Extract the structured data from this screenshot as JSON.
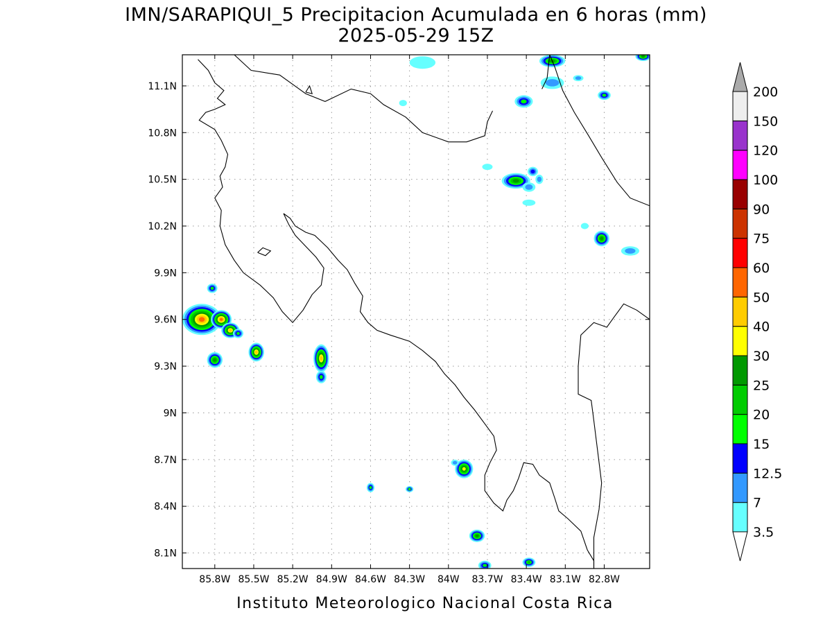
{
  "header": {
    "title_line1": "IMN/SARAPIQUI_5 Precipitacion Acumulada en 6 horas (mm)",
    "title_line2": "2025-05-29 15Z"
  },
  "footer": {
    "credit": "Instituto Meteorologico Nacional Costa Rica"
  },
  "map": {
    "lon_range": [
      -86.05,
      -82.45
    ],
    "lat_range": [
      8.0,
      11.3
    ],
    "lon_ticks": [
      {
        "value": -85.8,
        "label": "85.8W"
      },
      {
        "value": -85.5,
        "label": "85.5W"
      },
      {
        "value": -85.2,
        "label": "85.2W"
      },
      {
        "value": -84.9,
        "label": "84.9W"
      },
      {
        "value": -84.6,
        "label": "84.6W"
      },
      {
        "value": -84.3,
        "label": "84.3W"
      },
      {
        "value": -84.0,
        "label": "84W"
      },
      {
        "value": -83.7,
        "label": "83.7W"
      },
      {
        "value": -83.4,
        "label": "83.4W"
      },
      {
        "value": -83.1,
        "label": "83.1W"
      },
      {
        "value": -82.8,
        "label": "82.8W"
      }
    ],
    "lat_ticks": [
      {
        "value": 8.1,
        "label": "8.1N"
      },
      {
        "value": 8.4,
        "label": "8.4N"
      },
      {
        "value": 8.7,
        "label": "8.7N"
      },
      {
        "value": 9.0,
        "label": "9N"
      },
      {
        "value": 9.3,
        "label": "9.3N"
      },
      {
        "value": 9.6,
        "label": "9.6N"
      },
      {
        "value": 9.9,
        "label": "9.9N"
      },
      {
        "value": 10.2,
        "label": "10.2N"
      },
      {
        "value": 10.5,
        "label": "10.5N"
      },
      {
        "value": 10.8,
        "label": "10.8N"
      },
      {
        "value": 11.1,
        "label": "11.1N"
      }
    ],
    "grid": true,
    "coastline": [
      [
        [
          -85.93,
          11.27
        ],
        [
          -85.85,
          11.2
        ],
        [
          -85.8,
          11.12
        ],
        [
          -85.73,
          11.07
        ],
        [
          -85.78,
          11.02
        ],
        [
          -85.72,
          10.98
        ],
        [
          -85.8,
          10.95
        ],
        [
          -85.87,
          10.93
        ],
        [
          -85.92,
          10.88
        ],
        [
          -85.8,
          10.82
        ],
        [
          -85.75,
          10.75
        ],
        [
          -85.7,
          10.66
        ],
        [
          -85.72,
          10.58
        ],
        [
          -85.76,
          10.52
        ],
        [
          -85.74,
          10.45
        ],
        [
          -85.8,
          10.38
        ],
        [
          -85.75,
          10.3
        ],
        [
          -85.76,
          10.2
        ],
        [
          -85.72,
          10.08
        ],
        [
          -85.65,
          9.98
        ],
        [
          -85.58,
          9.9
        ],
        [
          -85.45,
          9.82
        ],
        [
          -85.35,
          9.74
        ],
        [
          -85.28,
          9.65
        ],
        [
          -85.2,
          9.58
        ],
        [
          -85.12,
          9.66
        ],
        [
          -85.05,
          9.76
        ],
        [
          -84.98,
          9.82
        ],
        [
          -84.96,
          9.93
        ],
        [
          -85.02,
          10.0
        ],
        [
          -85.1,
          10.07
        ],
        [
          -85.18,
          10.14
        ],
        [
          -85.23,
          10.21
        ],
        [
          -85.27,
          10.28
        ],
        [
          -85.22,
          10.25
        ],
        [
          -85.18,
          10.2
        ],
        [
          -85.1,
          10.16
        ],
        [
          -85.03,
          10.14
        ],
        [
          -84.93,
          10.06
        ],
        [
          -84.85,
          9.98
        ],
        [
          -84.78,
          9.92
        ],
        [
          -84.72,
          9.83
        ],
        [
          -84.66,
          9.75
        ],
        [
          -84.68,
          9.65
        ],
        [
          -84.62,
          9.58
        ],
        [
          -84.55,
          9.53
        ],
        [
          -84.45,
          9.5
        ],
        [
          -84.3,
          9.46
        ],
        [
          -84.2,
          9.4
        ],
        [
          -84.1,
          9.33
        ],
        [
          -84.03,
          9.25
        ],
        [
          -83.95,
          9.18
        ],
        [
          -83.88,
          9.1
        ],
        [
          -83.8,
          9.02
        ],
        [
          -83.72,
          8.93
        ],
        [
          -83.65,
          8.85
        ],
        [
          -83.63,
          8.76
        ],
        [
          -83.68,
          8.68
        ],
        [
          -83.72,
          8.6
        ],
        [
          -83.72,
          8.5
        ],
        [
          -83.65,
          8.42
        ],
        [
          -83.58,
          8.37
        ],
        [
          -83.55,
          8.44
        ],
        [
          -83.5,
          8.5
        ],
        [
          -83.46,
          8.58
        ],
        [
          -83.42,
          8.68
        ],
        [
          -83.35,
          8.67
        ],
        [
          -83.3,
          8.6
        ],
        [
          -83.22,
          8.55
        ],
        [
          -83.18,
          8.45
        ],
        [
          -83.15,
          8.37
        ],
        [
          -83.08,
          8.32
        ],
        [
          -82.98,
          8.24
        ],
        [
          -82.93,
          8.12
        ],
        [
          -82.88,
          8.05
        ],
        [
          -82.88,
          8.0
        ]
      ],
      [
        [
          -85.47,
          10.03
        ],
        [
          -85.43,
          10.06
        ],
        [
          -85.37,
          10.04
        ],
        [
          -85.41,
          10.01
        ],
        [
          -85.47,
          10.03
        ]
      ],
      [
        [
          -85.1,
          11.06
        ],
        [
          -85.07,
          11.1
        ],
        [
          -85.05,
          11.05
        ],
        [
          -85.1,
          11.06
        ]
      ],
      [
        [
          -82.45,
          10.33
        ],
        [
          -82.6,
          10.38
        ],
        [
          -82.7,
          10.48
        ],
        [
          -82.82,
          10.64
        ],
        [
          -82.92,
          10.78
        ],
        [
          -83.03,
          10.93
        ],
        [
          -83.12,
          11.07
        ],
        [
          -83.18,
          11.22
        ],
        [
          -83.22,
          11.3
        ]
      ]
    ],
    "borders": [
      [
        [
          -85.65,
          11.3
        ],
        [
          -85.52,
          11.2
        ],
        [
          -85.3,
          11.17
        ],
        [
          -85.1,
          11.05
        ],
        [
          -84.95,
          11.0
        ],
        [
          -84.75,
          11.08
        ],
        [
          -84.6,
          11.05
        ],
        [
          -84.5,
          10.98
        ],
        [
          -84.33,
          10.9
        ],
        [
          -84.2,
          10.8
        ],
        [
          -84.0,
          10.74
        ],
        [
          -83.86,
          10.74
        ],
        [
          -83.72,
          10.78
        ],
        [
          -83.7,
          10.87
        ],
        [
          -83.66,
          10.94
        ]
      ],
      [
        [
          -82.45,
          9.6
        ],
        [
          -82.55,
          9.66
        ],
        [
          -82.65,
          9.7
        ],
        [
          -82.72,
          9.62
        ],
        [
          -82.78,
          9.55
        ],
        [
          -82.88,
          9.58
        ],
        [
          -82.98,
          9.5
        ],
        [
          -83.0,
          9.3
        ],
        [
          -83.0,
          9.12
        ],
        [
          -82.9,
          9.08
        ],
        [
          -82.88,
          8.95
        ],
        [
          -82.85,
          8.75
        ],
        [
          -82.82,
          8.55
        ],
        [
          -82.84,
          8.38
        ],
        [
          -82.88,
          8.2
        ],
        [
          -82.88,
          8.05
        ],
        [
          -82.88,
          8.0
        ]
      ],
      [
        [
          -83.22,
          11.3
        ],
        [
          -83.24,
          11.15
        ],
        [
          -83.28,
          11.08
        ]
      ]
    ]
  },
  "legend": {
    "levels": [
      "3.5",
      "7",
      "12.5",
      "15",
      "20",
      "25",
      "30",
      "40",
      "50",
      "60",
      "75",
      "90",
      "100",
      "120",
      "150",
      "200"
    ],
    "colors": [
      "#ffffff",
      "#66ffff",
      "#3399ff",
      "#0000ff",
      "#00ff00",
      "#00cc00",
      "#009900",
      "#ffff00",
      "#ffcc00",
      "#ff6600",
      "#ff0000",
      "#cc3300",
      "#990000",
      "#ff00ff",
      "#9933cc",
      "#eeeeee",
      "#aaaaaa"
    ]
  },
  "chart_data": {
    "type": "heatmap",
    "title": "IMN/SARAPIQUI_5 Precipitacion Acumulada en 6 horas (mm)",
    "subtitle": "2025-05-29 15Z",
    "units": "mm",
    "xlim": [
      -86.05,
      -82.45
    ],
    "ylim": [
      8.0,
      11.3
    ],
    "grid": true,
    "legend_position": "right",
    "cells": [
      {
        "lon": -85.9,
        "lat": 9.6,
        "rx": 0.15,
        "ry": 0.1,
        "max": 50
      },
      {
        "lon": -85.75,
        "lat": 9.6,
        "rx": 0.08,
        "ry": 0.06,
        "max": 50
      },
      {
        "lon": -85.68,
        "lat": 9.53,
        "rx": 0.07,
        "ry": 0.05,
        "max": 40
      },
      {
        "lon": -85.82,
        "lat": 9.8,
        "rx": 0.04,
        "ry": 0.03,
        "max": 15
      },
      {
        "lon": -85.62,
        "lat": 9.51,
        "rx": 0.04,
        "ry": 0.03,
        "max": 15
      },
      {
        "lon": -85.8,
        "lat": 9.34,
        "rx": 0.06,
        "ry": 0.05,
        "max": 25
      },
      {
        "lon": -85.48,
        "lat": 9.39,
        "rx": 0.06,
        "ry": 0.06,
        "max": 40
      },
      {
        "lon": -84.98,
        "lat": 9.35,
        "rx": 0.06,
        "ry": 0.09,
        "max": 40
      },
      {
        "lon": -84.98,
        "lat": 9.23,
        "rx": 0.04,
        "ry": 0.04,
        "max": 15
      },
      {
        "lon": -83.88,
        "lat": 8.64,
        "rx": 0.07,
        "ry": 0.06,
        "max": 30
      },
      {
        "lon": -83.95,
        "lat": 8.68,
        "rx": 0.03,
        "ry": 0.02,
        "max": 7
      },
      {
        "lon": -84.6,
        "lat": 8.52,
        "rx": 0.03,
        "ry": 0.03,
        "max": 15
      },
      {
        "lon": -84.3,
        "lat": 8.51,
        "rx": 0.03,
        "ry": 0.02,
        "max": 15
      },
      {
        "lon": -83.78,
        "lat": 8.21,
        "rx": 0.06,
        "ry": 0.04,
        "max": 25
      },
      {
        "lon": -83.72,
        "lat": 8.02,
        "rx": 0.05,
        "ry": 0.03,
        "max": 15
      },
      {
        "lon": -83.38,
        "lat": 8.04,
        "rx": 0.05,
        "ry": 0.03,
        "max": 20
      },
      {
        "lon": -83.48,
        "lat": 10.49,
        "rx": 0.11,
        "ry": 0.05,
        "max": 25
      },
      {
        "lon": -83.35,
        "lat": 10.55,
        "rx": 0.04,
        "ry": 0.03,
        "max": 12.5
      },
      {
        "lon": -83.38,
        "lat": 10.45,
        "rx": 0.05,
        "ry": 0.03,
        "max": 7
      },
      {
        "lon": -83.3,
        "lat": 10.5,
        "rx": 0.03,
        "ry": 0.03,
        "max": 7
      },
      {
        "lon": -83.7,
        "lat": 10.58,
        "rx": 0.04,
        "ry": 0.02,
        "max": 3.5
      },
      {
        "lon": -83.38,
        "lat": 10.35,
        "rx": 0.05,
        "ry": 0.02,
        "max": 3.5
      },
      {
        "lon": -82.82,
        "lat": 10.12,
        "rx": 0.06,
        "ry": 0.05,
        "max": 25
      },
      {
        "lon": -82.6,
        "lat": 10.04,
        "rx": 0.07,
        "ry": 0.03,
        "max": 7
      },
      {
        "lon": -82.95,
        "lat": 10.2,
        "rx": 0.03,
        "ry": 0.02,
        "max": 3.5
      },
      {
        "lon": -83.42,
        "lat": 11.0,
        "rx": 0.07,
        "ry": 0.04,
        "max": 15
      },
      {
        "lon": -82.8,
        "lat": 11.04,
        "rx": 0.05,
        "ry": 0.03,
        "max": 15
      },
      {
        "lon": -83.2,
        "lat": 11.26,
        "rx": 0.1,
        "ry": 0.04,
        "max": 25
      },
      {
        "lon": -83.2,
        "lat": 11.12,
        "rx": 0.09,
        "ry": 0.04,
        "max": 7
      },
      {
        "lon": -83.0,
        "lat": 11.15,
        "rx": 0.04,
        "ry": 0.02,
        "max": 7
      },
      {
        "lon": -82.5,
        "lat": 11.29,
        "rx": 0.06,
        "ry": 0.03,
        "max": 25
      },
      {
        "lon": -84.2,
        "lat": 11.25,
        "rx": 0.1,
        "ry": 0.04,
        "max": 3.5
      },
      {
        "lon": -84.35,
        "lat": 10.99,
        "rx": 0.03,
        "ry": 0.02,
        "max": 3.5
      }
    ]
  }
}
